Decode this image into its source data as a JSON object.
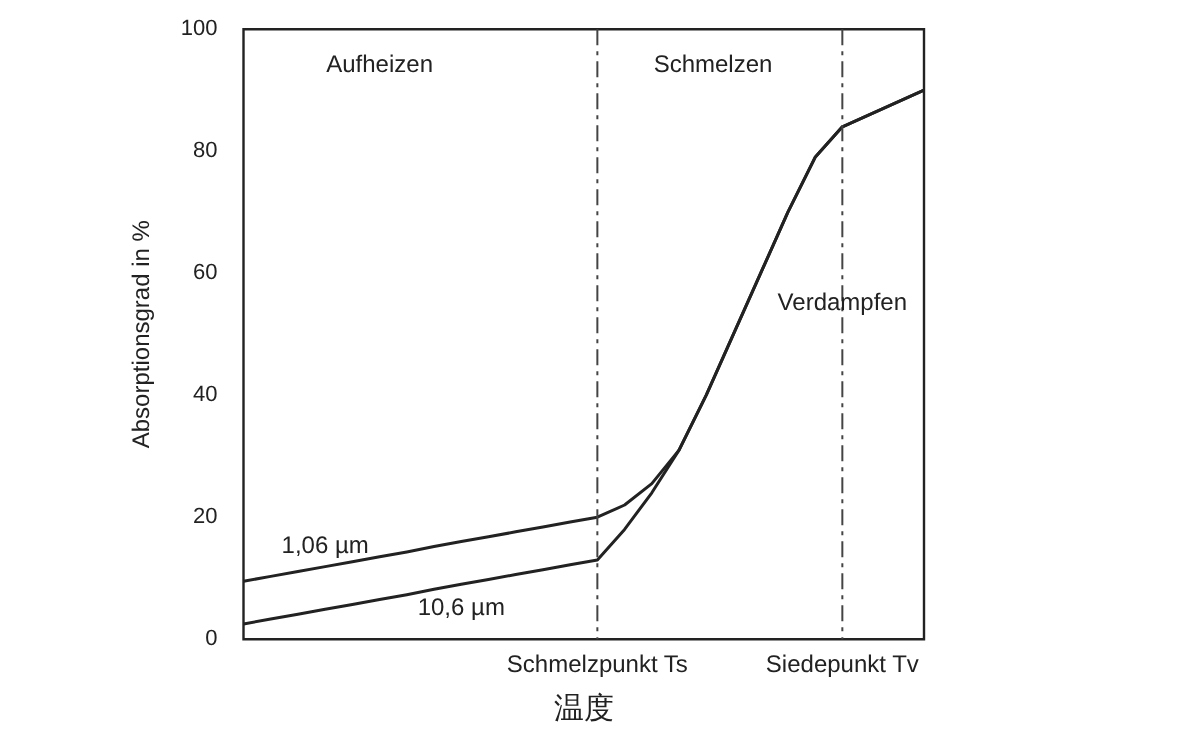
{
  "chart_data": {
    "type": "line",
    "xlabel": "温度",
    "ylabel": "Absorptionsgrad in %",
    "categories": [
      null,
      null,
      null,
      null,
      null,
      null,
      null,
      null,
      null,
      null,
      null,
      null,
      null,
      "Schmelzpunkt Ts",
      null,
      null,
      null,
      null,
      null,
      null,
      null,
      null,
      "Siedepunkt Tv",
      null,
      null,
      null
    ],
    "series": [
      {
        "name": "1,06 µm",
        "color": "#222222",
        "values": [
          9.5,
          10.3,
          11.1,
          11.9,
          12.7,
          13.5,
          14.3,
          15.2,
          16,
          16.8,
          17.6,
          18.4,
          19.2,
          20,
          22,
          25.5,
          31,
          40,
          50,
          60,
          70,
          79,
          84,
          86,
          88,
          90
        ]
      },
      {
        "name": "10,6 µm",
        "color": "#222222",
        "values": [
          2.5,
          3.3,
          4.1,
          4.9,
          5.7,
          6.5,
          7.3,
          8.2,
          9,
          9.8,
          10.6,
          11.4,
          12.2,
          13,
          18,
          24,
          31,
          40,
          50,
          60,
          70,
          79,
          84,
          86,
          88,
          90
        ]
      }
    ],
    "ylim": [
      0,
      100
    ],
    "yticks": [
      0,
      20,
      40,
      60,
      80,
      100
    ],
    "grid": false,
    "legend": false,
    "marker": "none",
    "line_style": "solid",
    "ref_lines": [
      {
        "axis": "x",
        "value": "Schmelzpunkt Ts",
        "line_style": "dashdot",
        "color": "#444444"
      },
      {
        "axis": "x",
        "value": "Siedepunkt Tv",
        "line_style": "dashdot",
        "color": "#444444"
      }
    ],
    "annotations": [
      "Aufheizen",
      "Schmelzen",
      "Verdampfen"
    ]
  }
}
